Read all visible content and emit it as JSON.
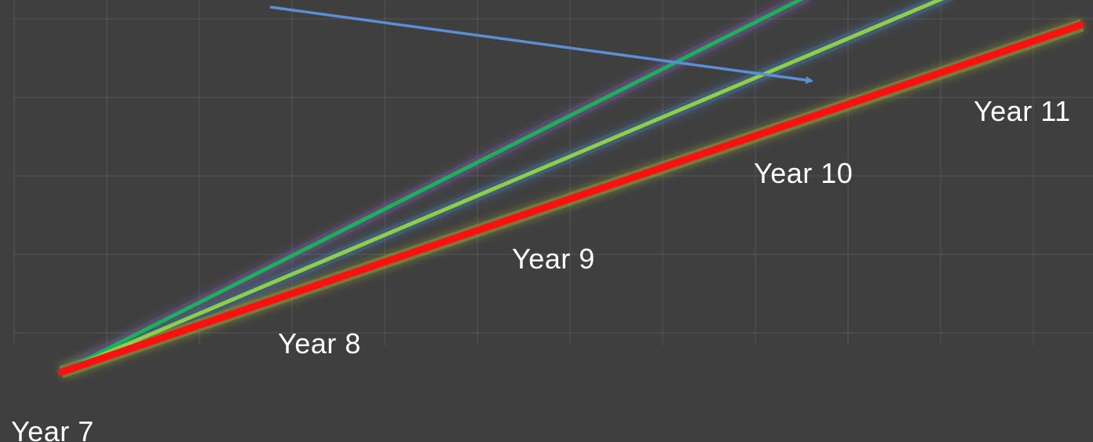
{
  "labels": {
    "year7": "Year 7",
    "year8": "Year 8",
    "year9": "Year 9",
    "year10": "Year 10",
    "year11": "Year 11"
  },
  "colors": {
    "background": "#3f3f3f",
    "grid": "#555555",
    "text": "#ffffff",
    "dark_green_line": "#1bb05a",
    "light_green_line": "#8fce4a",
    "red_line": "#ff1010",
    "arrow": "#5b8fd4"
  },
  "lines": [
    {
      "name": "dark-green-line",
      "color_key": "dark_green_line"
    },
    {
      "name": "light-green-line",
      "color_key": "light_green_line"
    },
    {
      "name": "red-line",
      "color_key": "red_line"
    }
  ]
}
